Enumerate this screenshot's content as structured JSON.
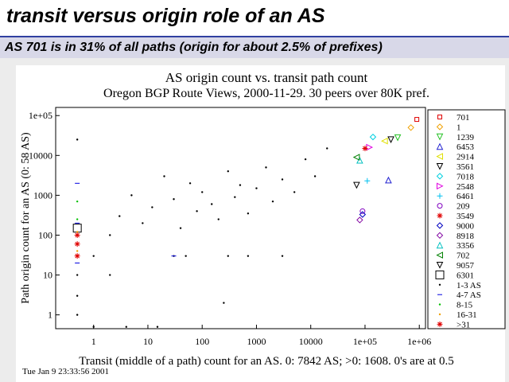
{
  "slide": {
    "title": "transit versus origin role of an AS",
    "subtitle": "AS 701 is in 31% of all paths (origin for about 2.5% of prefixes)",
    "timestamp": "Tue Jan  9 23:33:56 2001"
  },
  "chart_data": {
    "type": "scatter",
    "title": "AS origin count vs. transit path count",
    "subtitle": "Oregon BGP Route Views, 2000-11-29. 30 peers over 80K pref.",
    "x_label": "Transit (middle of a path) count for an AS. 0: 7842 AS; >0: 1608. 0's are at 0.5",
    "y_label": "Path origin count for an AS (0: 58 AS)",
    "x_log": true,
    "y_log": true,
    "xlim": [
      0.2,
      1300000
    ],
    "ylim": [
      0.45,
      160000
    ],
    "xticks": [
      1,
      10,
      100,
      1000,
      10000,
      {
        "value": 100000,
        "label": "1e+05"
      },
      {
        "value": 1000000,
        "label": "1e+06"
      }
    ],
    "yticks": [
      1,
      10,
      100,
      1000,
      10000,
      {
        "value": 100000,
        "label": "1e+05"
      }
    ],
    "series": [
      {
        "name": "701",
        "color": "#e00000",
        "marker": "square",
        "x": [
          900000
        ],
        "values": [
          80000
        ]
      },
      {
        "name": "1",
        "color": "#f0a000",
        "marker": "diamond",
        "x": [
          700000
        ],
        "values": [
          50000
        ]
      },
      {
        "name": "1239",
        "color": "#20c020",
        "marker": "tri-down",
        "x": [
          400000
        ],
        "values": [
          28000
        ]
      },
      {
        "name": "6453",
        "color": "#2020d0",
        "marker": "tri-up",
        "x": [
          270000
        ],
        "values": [
          2400
        ]
      },
      {
        "name": "2914",
        "color": "#e0e000",
        "marker": "tri-left",
        "x": [
          230000
        ],
        "values": [
          23000
        ]
      },
      {
        "name": "3561",
        "color": "#000000",
        "marker": "tri-down",
        "x": [
          300000
        ],
        "values": [
          25000
        ]
      },
      {
        "name": "7018",
        "color": "#00d0e0",
        "marker": "diamond",
        "x": [
          140000
        ],
        "values": [
          29000
        ]
      },
      {
        "name": "2548",
        "color": "#e000e0",
        "marker": "tri-right",
        "x": [
          120000
        ],
        "values": [
          16000
        ]
      },
      {
        "name": "6461",
        "color": "#00c0f0",
        "marker": "plus",
        "x": [
          110000
        ],
        "values": [
          2300
        ]
      },
      {
        "name": "209",
        "color": "#8000c0",
        "marker": "circle",
        "x": [
          90000
        ],
        "values": [
          400
        ]
      },
      {
        "name": "3549",
        "color": "#e00000",
        "marker": "star",
        "x": [
          100000
        ],
        "values": [
          15000
        ]
      },
      {
        "name": "9000",
        "color": "#0000c0",
        "marker": "diamond",
        "x": [
          90000
        ],
        "values": [
          330
        ]
      },
      {
        "name": "8918",
        "color": "#8000a0",
        "marker": "diamond",
        "x": [
          80000
        ],
        "values": [
          240
        ]
      },
      {
        "name": "3356",
        "color": "#00c0c0",
        "marker": "tri-up",
        "x": [
          80000
        ],
        "values": [
          7500
        ]
      },
      {
        "name": "702",
        "color": "#008000",
        "marker": "tri-left",
        "x": [
          70000
        ],
        "values": [
          9000
        ]
      },
      {
        "name": "9057",
        "color": "#000000",
        "marker": "tri-down",
        "x": [
          70000
        ],
        "values": [
          1800
        ]
      },
      {
        "name": "6301",
        "color": "#000000",
        "marker": "big-square",
        "x": [
          0.5
        ],
        "values": [
          150
        ]
      },
      {
        "name": "1-3 AS",
        "color": "#000000",
        "marker": "dot",
        "x": [
          1,
          2,
          3,
          5,
          8,
          12,
          20,
          30,
          40,
          60,
          80,
          100,
          150,
          200,
          300,
          400,
          500,
          700,
          1000,
          1500,
          2000,
          3000,
          5000,
          8000,
          12000,
          20000,
          30,
          50,
          300,
          2,
          0.5,
          0.5,
          0.5,
          0.5,
          1,
          4,
          15,
          250,
          700,
          3000
        ],
        "values": [
          30,
          100,
          300,
          1000,
          200,
          500,
          3000,
          800,
          150,
          2000,
          400,
          1200,
          600,
          250,
          4000,
          900,
          1800,
          350,
          1500,
          5000,
          700,
          2500,
          1200,
          8000,
          3000,
          15000,
          30,
          30,
          30,
          10,
          1,
          3,
          10,
          25000,
          0.5,
          0.5,
          0.5,
          2,
          30,
          30
        ]
      },
      {
        "name": "4-7 AS",
        "color": "#0000e0",
        "marker": "dash",
        "x": [
          0.5,
          0.5,
          0.5,
          30
        ],
        "values": [
          20,
          200,
          2000,
          30
        ]
      },
      {
        "name": "8-15",
        "color": "#00c000",
        "marker": "dot",
        "x": [
          0.5,
          0.5,
          0.5
        ],
        "values": [
          60,
          250,
          700
        ]
      },
      {
        "name": "16-31",
        "color": "#f0a000",
        "marker": "dot",
        "x": [
          0.5,
          0.5
        ],
        "values": [
          120,
          40
        ]
      },
      {
        "name": ">31",
        "color": "#e00000",
        "marker": "star",
        "x": [
          0.5,
          0.5,
          0.5
        ],
        "values": [
          30,
          60,
          100
        ]
      }
    ]
  }
}
